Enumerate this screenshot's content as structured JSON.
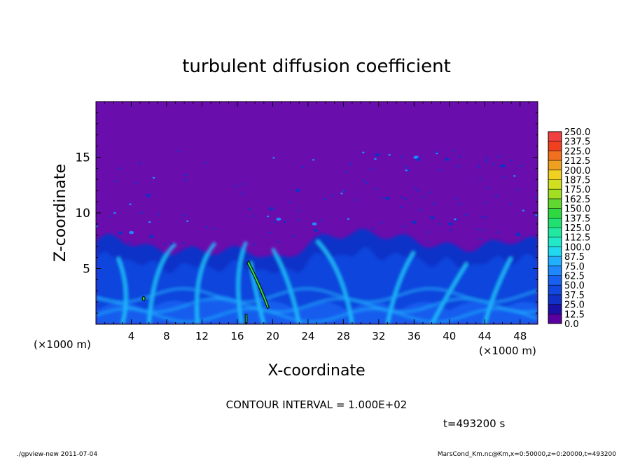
{
  "chart_data": {
    "type": "heatmap",
    "title": "turbulent diffusion coefficient",
    "xlabel": "X-coordinate",
    "ylabel": "Z-coordinate",
    "x_unit": "(×1000 m)",
    "y_unit": "(×1000 m)",
    "xlim": [
      0,
      50
    ],
    "ylim": [
      0,
      20
    ],
    "x_ticks": [
      4,
      8,
      12,
      16,
      20,
      24,
      28,
      32,
      36,
      40,
      44,
      48
    ],
    "y_ticks": [
      5,
      10,
      15
    ],
    "colorbar_levels": [
      "0.0",
      "12.5",
      "25.0",
      "37.5",
      "50.0",
      "62.5",
      "75.0",
      "87.5",
      "100.0",
      "112.5",
      "125.0",
      "137.5",
      "150.0",
      "162.5",
      "175.0",
      "187.5",
      "200.0",
      "212.5",
      "225.0",
      "237.5",
      "250.0"
    ],
    "colorbar_colors": [
      "#5a00a0",
      "#1a10a8",
      "#1030c8",
      "#1048e0",
      "#1860f0",
      "#2088ff",
      "#20b0ff",
      "#20d8f0",
      "#20e8c8",
      "#20e8a0",
      "#20e070",
      "#30d840",
      "#60d830",
      "#a0e020",
      "#d0e020",
      "#f0d020",
      "#f0a020",
      "#f07020",
      "#f04020",
      "#f04040",
      "#f08080"
    ],
    "bg_color": "#6a0dad",
    "contour_interval_label": "CONTOUR INTERVAL = 1.000E+02",
    "time_label": "t=493200 s"
  },
  "footer": {
    "left": "./gpview-new  2011-07-04",
    "right": "MarsCond_Km.nc@Km,x=0:50000,z=0:20000,t=493200"
  }
}
